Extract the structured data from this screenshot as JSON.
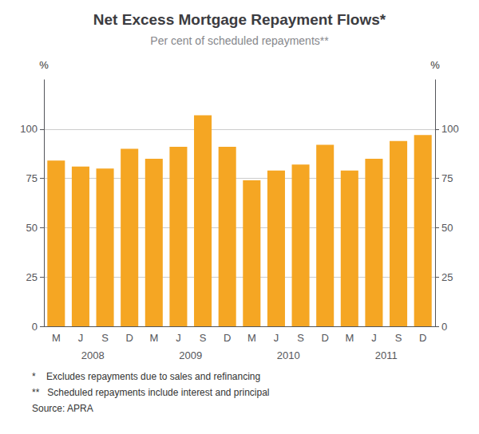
{
  "chart_data": {
    "type": "bar",
    "title": "Net Excess Mortgage Repayment Flows*",
    "subtitle": "Per cent of scheduled repayments**",
    "categories": [
      "M",
      "J",
      "S",
      "D",
      "M",
      "J",
      "S",
      "D",
      "M",
      "J",
      "S",
      "D",
      "M",
      "J",
      "S",
      "D"
    ],
    "category_groups": [
      "2008",
      "2009",
      "2010",
      "2011"
    ],
    "values": [
      84,
      81,
      80,
      90,
      85,
      91,
      107,
      91,
      74,
      79,
      82,
      92,
      79,
      85,
      94,
      97
    ],
    "color": "#F5A623",
    "ylim": [
      0,
      125
    ],
    "yticks": [
      0,
      25,
      50,
      75,
      100
    ],
    "y2lim": [
      0,
      125
    ],
    "y2ticks": [
      0,
      25,
      50,
      75,
      100
    ],
    "ylabel": "%",
    "y2label": "%",
    "grid": true,
    "footnotes": [
      "*    Excludes repayments due to sales and refinancing",
      "**   Scheduled repayments include interest and principal",
      "Source: APRA"
    ]
  }
}
